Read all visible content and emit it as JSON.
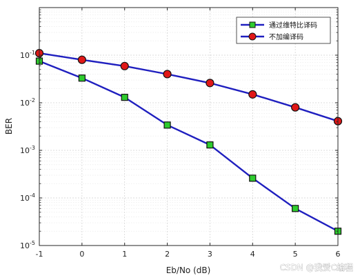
{
  "chart_data": {
    "type": "line",
    "title": "",
    "xlabel": "Eb/No (dB)",
    "ylabel": "BER",
    "x": [
      -1,
      0,
      1,
      2,
      3,
      4,
      5,
      6
    ],
    "xlim": [
      -1,
      6
    ],
    "ylim": [
      1e-05,
      1
    ],
    "yscale": "log",
    "x_tick_labels": [
      "-1",
      "0",
      "1",
      "2",
      "3",
      "4",
      "5",
      "6"
    ],
    "y_tick_labels": [
      {
        "base": "10",
        "exp": "-5"
      },
      {
        "base": "10",
        "exp": "-4"
      },
      {
        "base": "10",
        "exp": "-3"
      },
      {
        "base": "10",
        "exp": "-2"
      },
      {
        "base": "10",
        "exp": "-1"
      }
    ],
    "grid": true,
    "legend_position": "top-right",
    "series": [
      {
        "name": "通过维特比译码",
        "values": [
          0.075,
          0.033,
          0.013,
          0.0034,
          0.0013,
          0.00026,
          6e-05,
          2e-05
        ],
        "line_color": "#1f1fbf",
        "marker": "square",
        "marker_color": "#2ecc2e"
      },
      {
        "name": "不加编译码",
        "values": [
          0.11,
          0.08,
          0.059,
          0.04,
          0.026,
          0.015,
          0.008,
          0.0041
        ],
        "line_color": "#1f1fbf",
        "marker": "circle",
        "marker_color": "#e01818"
      }
    ]
  },
  "watermark": "CSDN @我爱C编程"
}
